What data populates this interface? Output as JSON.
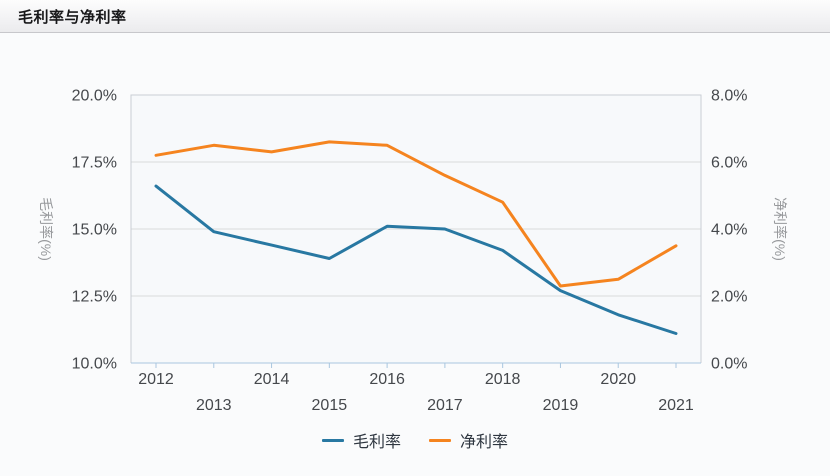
{
  "header": {
    "title": "毛利率与净利率"
  },
  "chart_data": {
    "type": "line",
    "title": "毛利率与净利率",
    "x": [
      "2012",
      "2013",
      "2014",
      "2015",
      "2016",
      "2017",
      "2018",
      "2019",
      "2020",
      "2021"
    ],
    "series": [
      {
        "name": "毛利率",
        "axis": "left",
        "color": "#2878a2",
        "values": [
          16.6,
          14.9,
          14.4,
          13.9,
          15.1,
          15.0,
          14.2,
          12.7,
          11.8,
          11.1
        ]
      },
      {
        "name": "净利率",
        "axis": "right",
        "color": "#f5841f",
        "values": [
          6.2,
          6.5,
          6.3,
          6.6,
          6.5,
          5.6,
          4.8,
          2.3,
          2.5,
          3.5
        ]
      }
    ],
    "left_axis": {
      "label": "毛利率(%)",
      "min": 10,
      "max": 20,
      "tick_values": [
        20,
        17.5,
        15,
        12.5,
        10
      ],
      "ticks": [
        "20.0%",
        "17.5%",
        "15.0%",
        "12.5%",
        "10.0%"
      ]
    },
    "right_axis": {
      "label": "净利率(%)",
      "min": 0,
      "max": 8,
      "tick_values": [
        8,
        6,
        4,
        2,
        0
      ],
      "ticks": [
        "8.0%",
        "6.0%",
        "4.0%",
        "2.0%",
        "0.0%"
      ]
    },
    "grid": true,
    "legend_position": "bottom",
    "x_label_layout": "staggered-two-rows"
  },
  "colors": {
    "plot_background": "#f7f9fb",
    "plot_border": "#c9ced4",
    "gridline": "#d9dadb",
    "x_axis_line": "#a9c6df",
    "tick_label": "#45484c",
    "axis_title": "#97999c",
    "legend_text": "#2e3640",
    "header_border": "#c7c7cb"
  }
}
